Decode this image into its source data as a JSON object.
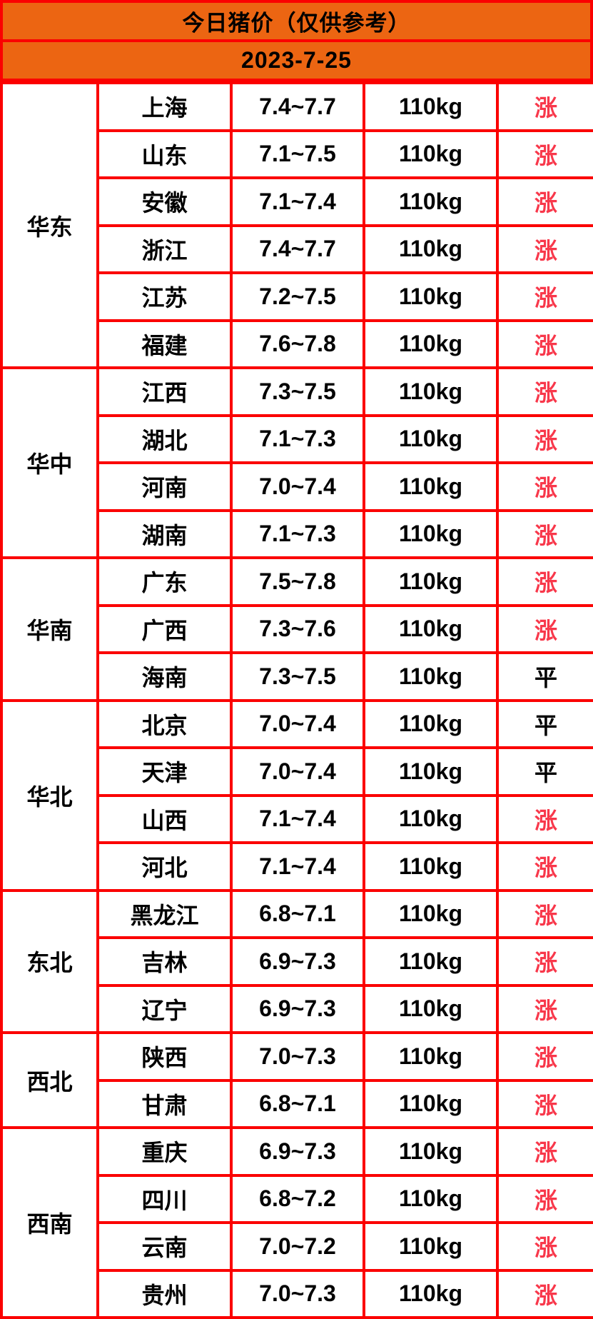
{
  "chart_data": {
    "type": "table",
    "title": "今日猪价（仅供参考）",
    "date": "2023-7-25",
    "regions": [
      {
        "name": "华东",
        "rows": [
          {
            "province": "上海",
            "price": "7.4~7.7",
            "weight": "110kg",
            "status": "涨"
          },
          {
            "province": "山东",
            "price": "7.1~7.5",
            "weight": "110kg",
            "status": "涨"
          },
          {
            "province": "安徽",
            "price": "7.1~7.4",
            "weight": "110kg",
            "status": "涨"
          },
          {
            "province": "浙江",
            "price": "7.4~7.7",
            "weight": "110kg",
            "status": "涨"
          },
          {
            "province": "江苏",
            "price": "7.2~7.5",
            "weight": "110kg",
            "status": "涨"
          },
          {
            "province": "福建",
            "price": "7.6~7.8",
            "weight": "110kg",
            "status": "涨"
          }
        ]
      },
      {
        "name": "华中",
        "rows": [
          {
            "province": "江西",
            "price": "7.3~7.5",
            "weight": "110kg",
            "status": "涨"
          },
          {
            "province": "湖北",
            "price": "7.1~7.3",
            "weight": "110kg",
            "status": "涨"
          },
          {
            "province": "河南",
            "price": "7.0~7.4",
            "weight": "110kg",
            "status": "涨"
          },
          {
            "province": "湖南",
            "price": "7.1~7.3",
            "weight": "110kg",
            "status": "涨"
          }
        ]
      },
      {
        "name": "华南",
        "rows": [
          {
            "province": "广东",
            "price": "7.5~7.8",
            "weight": "110kg",
            "status": "涨"
          },
          {
            "province": "广西",
            "price": "7.3~7.6",
            "weight": "110kg",
            "status": "涨"
          },
          {
            "province": "海南",
            "price": "7.3~7.5",
            "weight": "110kg",
            "status": "平"
          }
        ]
      },
      {
        "name": "华北",
        "rows": [
          {
            "province": "北京",
            "price": "7.0~7.4",
            "weight": "110kg",
            "status": "平"
          },
          {
            "province": "天津",
            "price": "7.0~7.4",
            "weight": "110kg",
            "status": "平"
          },
          {
            "province": "山西",
            "price": "7.1~7.4",
            "weight": "110kg",
            "status": "涨"
          },
          {
            "province": "河北",
            "price": "7.1~7.4",
            "weight": "110kg",
            "status": "涨"
          }
        ]
      },
      {
        "name": "东北",
        "rows": [
          {
            "province": "黑龙江",
            "price": "6.8~7.1",
            "weight": "110kg",
            "status": "涨"
          },
          {
            "province": "吉林",
            "price": "6.9~7.3",
            "weight": "110kg",
            "status": "涨"
          },
          {
            "province": "辽宁",
            "price": "6.9~7.3",
            "weight": "110kg",
            "status": "涨"
          }
        ]
      },
      {
        "name": "西北",
        "rows": [
          {
            "province": "陕西",
            "price": "7.0~7.3",
            "weight": "110kg",
            "status": "涨"
          },
          {
            "province": "甘肃",
            "price": "6.8~7.1",
            "weight": "110kg",
            "status": "涨"
          }
        ]
      },
      {
        "name": "西南",
        "rows": [
          {
            "province": "重庆",
            "price": "6.9~7.3",
            "weight": "110kg",
            "status": "涨"
          },
          {
            "province": "四川",
            "price": "6.8~7.2",
            "weight": "110kg",
            "status": "涨"
          },
          {
            "province": "云南",
            "price": "7.0~7.2",
            "weight": "110kg",
            "status": "涨"
          },
          {
            "province": "贵州",
            "price": "7.0~7.3",
            "weight": "110kg",
            "status": "涨"
          }
        ]
      }
    ]
  },
  "colors": {
    "header_bg": "#EC6512",
    "border": "#FB0000",
    "rise_text": "#F8384B",
    "flat_text": "#000000",
    "cell_bg": "#FFFFFF"
  },
  "status_styles": {
    "涨": "rise",
    "平": "flat"
  }
}
